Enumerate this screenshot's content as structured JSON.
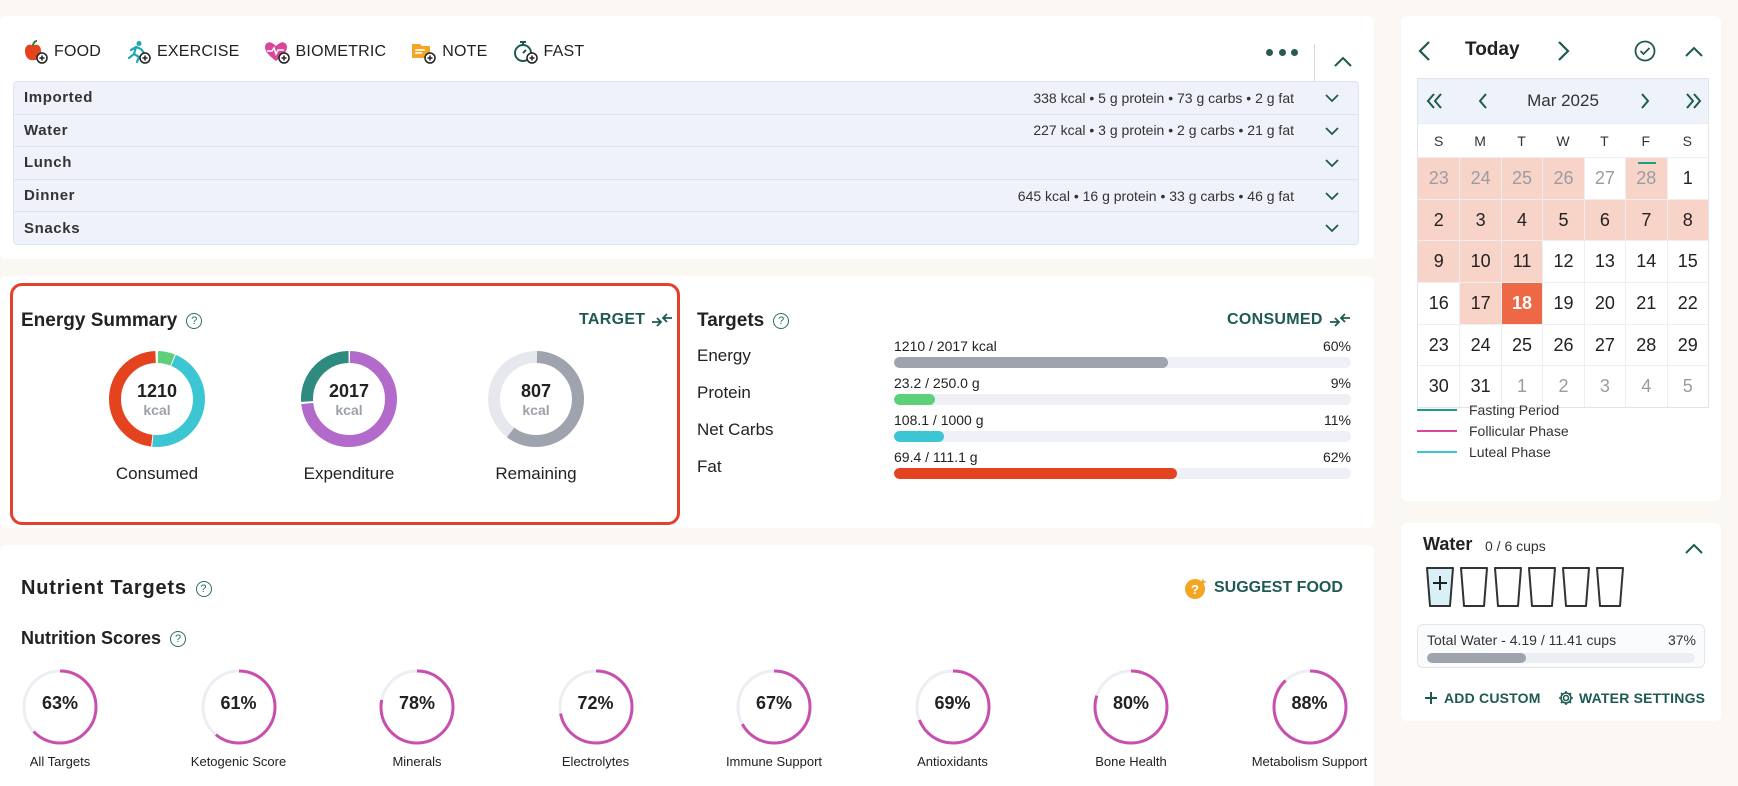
{
  "toolbar": {
    "food": "FOOD",
    "exercise": "EXERCISE",
    "biometric": "BIOMETRIC",
    "note": "NOTE",
    "fast": "FAST"
  },
  "meals": [
    {
      "name": "Imported",
      "summary": "338 kcal • 5 g protein • 73 g carbs • 2 g fat"
    },
    {
      "name": "Water",
      "summary": "227 kcal • 3 g protein • 2 g carbs • 21 g fat"
    },
    {
      "name": "Lunch",
      "summary": ""
    },
    {
      "name": "Dinner",
      "summary": "645 kcal • 16 g protein • 33 g carbs • 46 g fat"
    },
    {
      "name": "Snacks",
      "summary": ""
    }
  ],
  "energy": {
    "title": "Energy Summary",
    "toggle": "TARGET",
    "unit": "kcal",
    "consumed": {
      "value": "1210",
      "label": "Consumed"
    },
    "expenditure": {
      "value": "2017",
      "label": "Expenditure"
    },
    "remaining": {
      "value": "807",
      "label": "Remaining"
    }
  },
  "targets": {
    "title": "Targets",
    "toggle": "CONSUMED",
    "rows": [
      {
        "name": "Energy",
        "values": "1210 / 2017 kcal",
        "pct": "60%",
        "fraction": 0.6,
        "color": "#9fa3ad"
      },
      {
        "name": "Protein",
        "values": "23.2 / 250.0 g",
        "pct": "9%",
        "fraction": 0.09,
        "color": "#5fd07a"
      },
      {
        "name": "Net Carbs",
        "values": "108.1 / 1000 g",
        "pct": "11%",
        "fraction": 0.11,
        "color": "#3cc6d3"
      },
      {
        "name": "Fat",
        "values": "69.4 / 111.1 g",
        "pct": "62%",
        "fraction": 0.62,
        "color": "#e4431f"
      }
    ]
  },
  "nutrient": {
    "title": "Nutrient Targets",
    "suggest": "SUGGEST FOOD",
    "scores_title": "Nutrition Scores",
    "scores": [
      {
        "value": "63%",
        "fraction": 0.63,
        "label": "All Targets"
      },
      {
        "value": "61%",
        "fraction": 0.61,
        "label": "Ketogenic Score"
      },
      {
        "value": "78%",
        "fraction": 0.78,
        "label": "Minerals"
      },
      {
        "value": "72%",
        "fraction": 0.72,
        "label": "Electrolytes"
      },
      {
        "value": "67%",
        "fraction": 0.67,
        "label": "Immune Support"
      },
      {
        "value": "69%",
        "fraction": 0.69,
        "label": "Antioxidants"
      },
      {
        "value": "80%",
        "fraction": 0.8,
        "label": "Bone Health"
      },
      {
        "value": "88%",
        "fraction": 0.88,
        "label": "Metabolism Support"
      }
    ]
  },
  "calendar": {
    "today": "Today",
    "month": "Mar 2025",
    "dow": [
      "S",
      "M",
      "T",
      "W",
      "T",
      "F",
      "S"
    ],
    "weeks": [
      [
        {
          "d": "23",
          "m": 1,
          "p": 1
        },
        {
          "d": "24",
          "m": 1,
          "p": 1
        },
        {
          "d": "25",
          "m": 1,
          "p": 1
        },
        {
          "d": "26",
          "m": 1,
          "p": 1
        },
        {
          "d": "27",
          "m": 1,
          "p": 0
        },
        {
          "d": "28",
          "m": 1,
          "p": 1,
          "f": 1
        },
        {
          "d": "1",
          "m": 0,
          "p": 0
        }
      ],
      [
        {
          "d": "2",
          "p": 1
        },
        {
          "d": "3",
          "p": 1
        },
        {
          "d": "4",
          "p": 1
        },
        {
          "d": "5",
          "p": 1
        },
        {
          "d": "6",
          "p": 1
        },
        {
          "d": "7",
          "p": 1
        },
        {
          "d": "8",
          "p": 1
        }
      ],
      [
        {
          "d": "9",
          "p": 1
        },
        {
          "d": "10",
          "p": 1
        },
        {
          "d": "11",
          "p": 1
        },
        {
          "d": "12"
        },
        {
          "d": "13"
        },
        {
          "d": "14"
        },
        {
          "d": "15"
        }
      ],
      [
        {
          "d": "16"
        },
        {
          "d": "17",
          "p": 1
        },
        {
          "d": "18",
          "t": 1
        },
        {
          "d": "19"
        },
        {
          "d": "20"
        },
        {
          "d": "21"
        },
        {
          "d": "22"
        }
      ],
      [
        {
          "d": "23"
        },
        {
          "d": "24"
        },
        {
          "d": "25"
        },
        {
          "d": "26"
        },
        {
          "d": "27"
        },
        {
          "d": "28"
        },
        {
          "d": "29"
        }
      ],
      [
        {
          "d": "30"
        },
        {
          "d": "31"
        },
        {
          "d": "1",
          "m": 1
        },
        {
          "d": "2",
          "m": 1
        },
        {
          "d": "3",
          "m": 1
        },
        {
          "d": "4",
          "m": 1
        },
        {
          "d": "5",
          "m": 1
        }
      ]
    ],
    "legend": [
      {
        "label": "Fasting Period",
        "color": "#1d9e8a"
      },
      {
        "label": "Follicular Phase",
        "color": "#d9479a"
      },
      {
        "label": "Luteal Phase",
        "color": "#3cc6d3"
      }
    ]
  },
  "water": {
    "title": "Water",
    "cups": "0 / 6 cups",
    "total_label": "Total Water - 4.19 / 11.41 cups",
    "total_pct": "37%",
    "fraction": 0.37,
    "add_custom": "ADD CUSTOM",
    "settings": "WATER SETTINGS"
  }
}
